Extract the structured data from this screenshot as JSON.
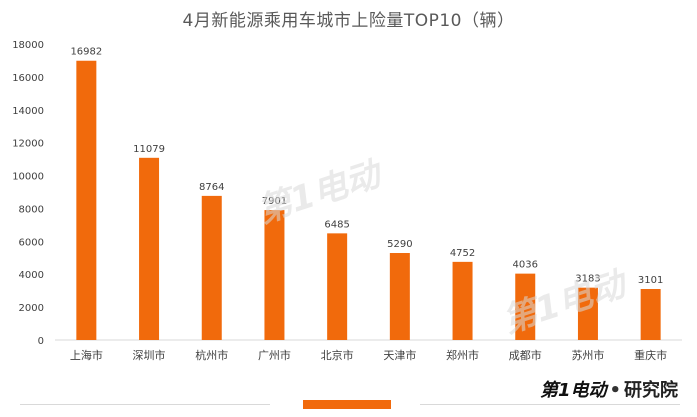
{
  "chart_data": {
    "type": "bar",
    "title": "4月新能源乘用车城市上险量TOP10（辆）",
    "categories": [
      "上海市",
      "深圳市",
      "杭州市",
      "广州市",
      "北京市",
      "天津市",
      "郑州市",
      "成都市",
      "苏州市",
      "重庆市"
    ],
    "values": [
      16982,
      11079,
      8764,
      7901,
      6485,
      5290,
      4752,
      4036,
      3183,
      3101
    ],
    "ylim": [
      0,
      18000
    ],
    "yticks": [
      0,
      2000,
      4000,
      6000,
      8000,
      10000,
      12000,
      14000,
      16000,
      18000
    ],
    "grid": false,
    "xlabel": "",
    "ylabel": "",
    "bar_color": "#f16a0c",
    "axis_color": "#d9d9d9",
    "text_color": "#404040"
  },
  "watermark": "第1电动",
  "brand": {
    "logo": "第1电动",
    "separator": "•",
    "name": "研究院"
  }
}
